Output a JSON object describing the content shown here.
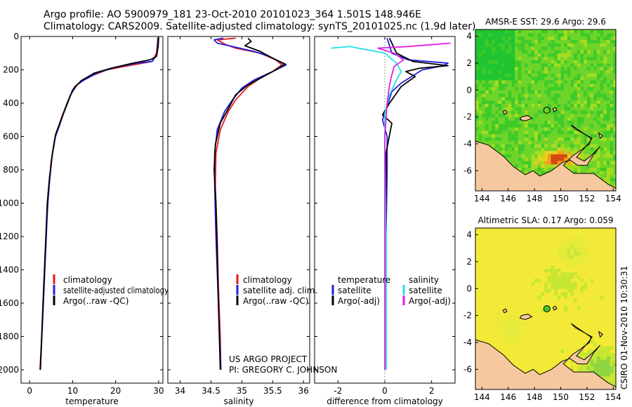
{
  "header": {
    "line1": "Argo profile: AO 5900979_181 23-Oct-2010 20101023_364 1.501S 148.946E",
    "line2": "Climatology: CARS2009. Satellite-adjusted climatology: synTS_20101025.nc (1.9d later)"
  },
  "stamp": "CSIRO 01-Nov-2010 10:30:31",
  "credit": {
    "line1": "US ARGO PROJECT",
    "line2": "PI: GREGORY C. JOHNSON"
  },
  "colors": {
    "climatology": "#e41a1c",
    "satellite": "#1f1fdf",
    "argo": "#000000",
    "cyan": "#22e0e8",
    "magenta": "#e020e0",
    "land": "#f6c8a0"
  },
  "chart_data": [
    {
      "type": "line",
      "id": "temperature",
      "xlabel": "temperature",
      "ylabel": "",
      "xlim": [
        -2,
        31
      ],
      "ylim": [
        0,
        2080
      ],
      "y_inverted": true,
      "xticks": [
        0,
        10,
        20,
        30
      ],
      "yticks": [
        0,
        200,
        400,
        600,
        800,
        1000,
        1200,
        1400,
        1600,
        1800,
        2000
      ],
      "legend": {
        "placement": "bottom-right",
        "entries": [
          "climatology",
          "satellite-adjusted climatology",
          "Argo(..raw -QC)"
        ]
      },
      "series": [
        {
          "name": "climatology",
          "color": "#e41a1c",
          "points": [
            [
              29.8,
              5
            ],
            [
              29.7,
              50
            ],
            [
              29.5,
              100
            ],
            [
              28.5,
              150
            ],
            [
              22,
              180
            ],
            [
              18,
              200
            ],
            [
              15,
              230
            ],
            [
              12,
              270
            ],
            [
              10.5,
              300
            ],
            [
              9,
              380
            ],
            [
              7.5,
              480
            ],
            [
              6.5,
              560
            ],
            [
              5.8,
              620
            ],
            [
              5,
              750
            ],
            [
              4.5,
              900
            ],
            [
              4,
              1100
            ],
            [
              3.5,
              1400
            ],
            [
              3,
              1700
            ],
            [
              2.4,
              2000
            ]
          ]
        },
        {
          "name": "satellite-adjusted climatology",
          "color": "#1f1fdf",
          "points": [
            [
              29.9,
              5
            ],
            [
              29.8,
              50
            ],
            [
              29.6,
              110
            ],
            [
              28.5,
              150
            ],
            [
              25,
              160
            ],
            [
              20,
              185
            ],
            [
              16,
              215
            ],
            [
              13,
              255
            ],
            [
              11,
              290
            ],
            [
              9.5,
              350
            ],
            [
              8,
              450
            ],
            [
              7,
              530
            ],
            [
              6,
              600
            ],
            [
              5.2,
              720
            ],
            [
              4.7,
              850
            ],
            [
              4.2,
              1000
            ],
            [
              3.7,
              1300
            ],
            [
              3.2,
              1600
            ],
            [
              2.5,
              2000
            ]
          ]
        },
        {
          "name": "Argo(..raw -QC)",
          "color": "#000000",
          "points": [
            [
              30,
              5
            ],
            [
              29.9,
              60
            ],
            [
              29.5,
              120
            ],
            [
              28,
              140
            ],
            [
              24,
              160
            ],
            [
              19,
              190
            ],
            [
              15,
              220
            ],
            [
              12,
              265
            ],
            [
              10,
              320
            ],
            [
              8.5,
              420
            ],
            [
              7,
              520
            ],
            [
              6,
              590
            ],
            [
              5.3,
              700
            ],
            [
              4.6,
              850
            ],
            [
              4.1,
              1000
            ],
            [
              3.6,
              1300
            ],
            [
              3.1,
              1600
            ],
            [
              2.5,
              2000
            ]
          ]
        }
      ]
    },
    {
      "type": "line",
      "id": "salinity",
      "xlabel": "salinity",
      "ylabel": "",
      "xlim": [
        33.8,
        36.1
      ],
      "ylim": [
        0,
        2080
      ],
      "y_inverted": true,
      "xticks": [
        34,
        34.5,
        35,
        35.5,
        36
      ],
      "legend": {
        "placement": "bottom-right",
        "entries": [
          "climatology",
          "satellite adj. clim.",
          "Argo(..raw -QC)"
        ]
      },
      "series": [
        {
          "name": "climatology",
          "color": "#e41a1c",
          "points": [
            [
              34.9,
              10
            ],
            [
              34.6,
              20
            ],
            [
              34.75,
              50
            ],
            [
              34.9,
              70
            ],
            [
              35.3,
              100
            ],
            [
              35.55,
              140
            ],
            [
              35.65,
              170
            ],
            [
              35.5,
              210
            ],
            [
              35.3,
              250
            ],
            [
              35.1,
              300
            ],
            [
              34.9,
              380
            ],
            [
              34.78,
              450
            ],
            [
              34.65,
              560
            ],
            [
              34.58,
              700
            ],
            [
              34.57,
              900
            ],
            [
              34.6,
              1200
            ],
            [
              34.62,
              1500
            ],
            [
              34.65,
              1800
            ],
            [
              34.66,
              2000
            ]
          ]
        },
        {
          "name": "satellite adj. clim.",
          "color": "#1f1fdf",
          "points": [
            [
              34.7,
              10
            ],
            [
              34.55,
              20
            ],
            [
              34.6,
              40
            ],
            [
              34.85,
              60
            ],
            [
              35.2,
              90
            ],
            [
              35.45,
              120
            ],
            [
              35.6,
              150
            ],
            [
              35.72,
              170
            ],
            [
              35.5,
              210
            ],
            [
              35.2,
              260
            ],
            [
              35,
              310
            ],
            [
              34.85,
              380
            ],
            [
              34.72,
              450
            ],
            [
              34.6,
              560
            ],
            [
              34.56,
              700
            ],
            [
              34.56,
              900
            ],
            [
              34.58,
              1200
            ],
            [
              34.61,
              1500
            ],
            [
              34.64,
              1800
            ],
            [
              34.66,
              2000
            ]
          ]
        },
        {
          "name": "Argo(..raw -QC)",
          "color": "#000000",
          "points": [
            [
              35.1,
              10
            ],
            [
              35.15,
              30
            ],
            [
              35.05,
              55
            ],
            [
              35.3,
              90
            ],
            [
              35.5,
              130
            ],
            [
              35.7,
              165
            ],
            [
              35.55,
              200
            ],
            [
              35.3,
              250
            ],
            [
              35.1,
              290
            ],
            [
              34.9,
              350
            ],
            [
              34.8,
              420
            ],
            [
              34.65,
              520
            ],
            [
              34.57,
              650
            ],
            [
              34.55,
              800
            ],
            [
              34.58,
              1000
            ],
            [
              34.6,
              1300
            ],
            [
              34.62,
              1600
            ],
            [
              34.65,
              2000
            ]
          ]
        }
      ]
    },
    {
      "type": "line",
      "id": "difference",
      "xlabel": "difference from climatology",
      "ylabel": "",
      "xlim": [
        -3,
        3
      ],
      "ylim": [
        0,
        2080
      ],
      "y_inverted": true,
      "xticks": [
        -2,
        0,
        2
      ],
      "legend": {
        "placement": "bottom-right",
        "groups": [
          {
            "title": "temperature",
            "entries": [
              "satellite",
              "Argo(-adj)"
            ]
          },
          {
            "title": "salinity",
            "entries": [
              "satellite",
              "Argo(-adj)"
            ]
          }
        ]
      },
      "series": [
        {
          "name": "temperature satellite",
          "color": "#1f1fdf",
          "points": [
            [
              0.1,
              10
            ],
            [
              0.3,
              100
            ],
            [
              1,
              140
            ],
            [
              2.7,
              160
            ],
            [
              2.5,
              175
            ],
            [
              1.6,
              200
            ],
            [
              0.7,
              280
            ],
            [
              0.3,
              330
            ],
            [
              0.1,
              420
            ],
            [
              -0.1,
              500
            ],
            [
              0.1,
              600
            ],
            [
              0.1,
              800
            ],
            [
              0.05,
              1200
            ],
            [
              0.05,
              1600
            ],
            [
              0.05,
              2000
            ]
          ]
        },
        {
          "name": "temperature Argo(-adj)",
          "color": "#000000",
          "points": [
            [
              0.2,
              10
            ],
            [
              0.5,
              100
            ],
            [
              1.2,
              150
            ],
            [
              2.7,
              175
            ],
            [
              1.5,
              190
            ],
            [
              0.9,
              210
            ],
            [
              1.3,
              240
            ],
            [
              0.7,
              300
            ],
            [
              0.2,
              400
            ],
            [
              -0.1,
              470
            ],
            [
              0.3,
              520
            ],
            [
              0.05,
              700
            ],
            [
              0.05,
              1000
            ],
            [
              0.05,
              1500
            ],
            [
              0.05,
              2000
            ]
          ]
        },
        {
          "name": "salinity satellite",
          "color": "#22e0e8",
          "points": [
            [
              -2.3,
              70
            ],
            [
              -1.5,
              60
            ],
            [
              0,
              100
            ],
            [
              0.5,
              160
            ],
            [
              0.7,
              210
            ],
            [
              0.5,
              260
            ],
            [
              0.2,
              350
            ],
            [
              0,
              460
            ],
            [
              0,
              700
            ],
            [
              0.05,
              1200
            ],
            [
              0.05,
              2000
            ]
          ]
        },
        {
          "name": "salinity Argo(-adj)",
          "color": "#e020e0",
          "points": [
            [
              2.8,
              40
            ],
            [
              1,
              60
            ],
            [
              -0.3,
              70
            ],
            [
              0.4,
              100
            ],
            [
              0.8,
              140
            ],
            [
              0.4,
              180
            ],
            [
              0.3,
              230
            ],
            [
              0.2,
              290
            ],
            [
              0.1,
              400
            ],
            [
              0,
              600
            ],
            [
              0,
              1000
            ],
            [
              0,
              2000
            ]
          ]
        }
      ]
    },
    {
      "type": "heatmap",
      "id": "sst-map",
      "title": "AMSR-E SST: 29.6 Argo: 29.6",
      "xlim": [
        143.5,
        154.2
      ],
      "ylim": [
        -7.5,
        4.5
      ],
      "xticks": [
        144,
        146,
        148,
        150,
        152,
        154
      ],
      "yticks": [
        4,
        2,
        0,
        -2,
        -4,
        -6
      ],
      "argo_position": [
        148.946,
        -1.501
      ],
      "argo_marker": "open"
    },
    {
      "type": "heatmap",
      "id": "sla-map",
      "title": "Altimetric SLA: 0.17 Argo: 0.059",
      "xlim": [
        143.5,
        154.2
      ],
      "ylim": [
        -7.5,
        4.5
      ],
      "xticks": [
        144,
        146,
        148,
        150,
        152,
        154
      ],
      "yticks": [
        4,
        2,
        0,
        -2,
        -4,
        -6
      ],
      "argo_position": [
        148.946,
        -1.501
      ],
      "argo_marker": "filled"
    }
  ]
}
